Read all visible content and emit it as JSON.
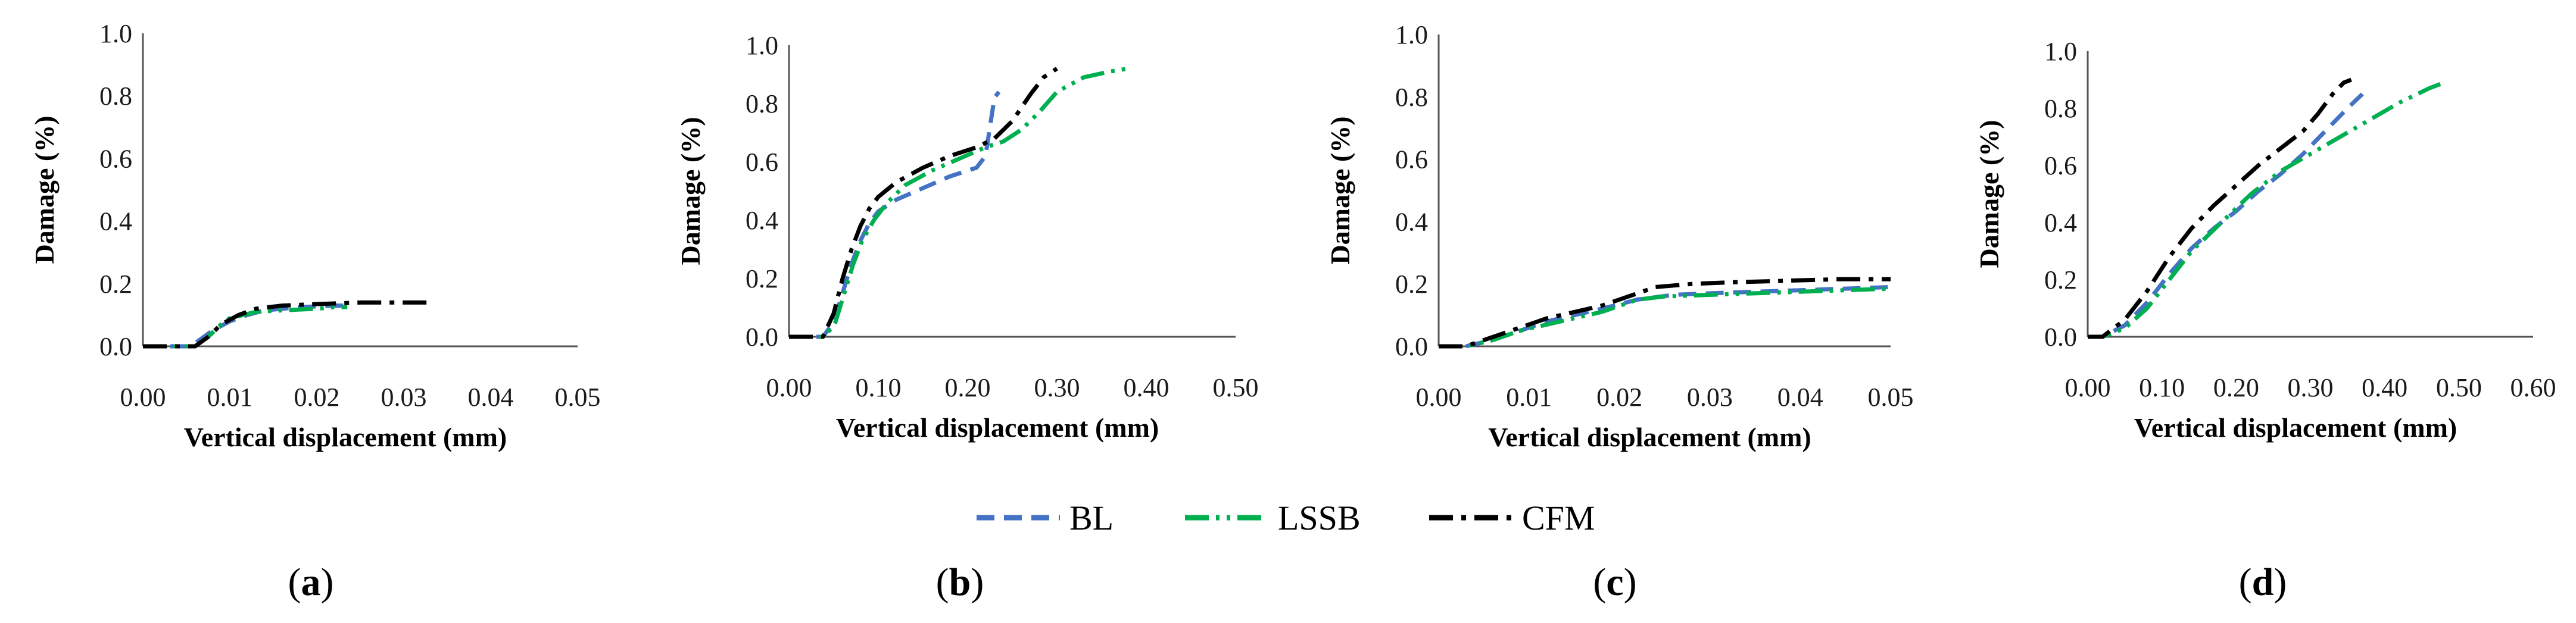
{
  "figure": {
    "legend": [
      {
        "name": "BL",
        "color": "#4472C4",
        "style": "dash"
      },
      {
        "name": "LSSB",
        "color": "#00B050",
        "style": "dashdotdot"
      },
      {
        "name": "CFM",
        "color": "#000000",
        "style": "dashdot"
      }
    ]
  },
  "chart_data": [
    {
      "type": "line",
      "panel": "a",
      "title": "",
      "xlabel": "Vertical displacement (mm)",
      "ylabel": "Damage (%)",
      "xlim": [
        0,
        0.05
      ],
      "ylim": [
        0,
        1.0
      ],
      "x_ticks": [
        "0.00",
        "0.01",
        "0.02",
        "0.03",
        "0.04",
        "0.05"
      ],
      "y_ticks": [
        "0.0",
        "0.2",
        "0.4",
        "0.6",
        "0.8",
        "1.0"
      ],
      "series": [
        {
          "name": "BL",
          "points": [
            [
              0,
              0
            ],
            [
              0.0055,
              0.0
            ],
            [
              0.0065,
              0.02
            ],
            [
              0.008,
              0.05
            ],
            [
              0.01,
              0.08
            ],
            [
              0.012,
              0.1
            ],
            [
              0.014,
              0.115
            ],
            [
              0.018,
              0.125
            ],
            [
              0.022,
              0.13
            ],
            [
              0.024,
              0.13
            ]
          ]
        },
        {
          "name": "LSSB",
          "points": [
            [
              0,
              0
            ],
            [
              0.006,
              0.0
            ],
            [
              0.0075,
              0.03
            ],
            [
              0.009,
              0.07
            ],
            [
              0.01,
              0.09
            ],
            [
              0.0115,
              0.1
            ],
            [
              0.013,
              0.11
            ],
            [
              0.016,
              0.115
            ],
            [
              0.02,
              0.12
            ],
            [
              0.022,
              0.125
            ],
            [
              0.0235,
              0.125
            ]
          ]
        },
        {
          "name": "CFM",
          "points": [
            [
              0,
              0
            ],
            [
              0.006,
              0.0
            ],
            [
              0.0075,
              0.03
            ],
            [
              0.009,
              0.07
            ],
            [
              0.011,
              0.1
            ],
            [
              0.013,
              0.12
            ],
            [
              0.016,
              0.13
            ],
            [
              0.02,
              0.135
            ],
            [
              0.025,
              0.14
            ],
            [
              0.03,
              0.14
            ],
            [
              0.033,
              0.14
            ]
          ]
        }
      ]
    },
    {
      "type": "line",
      "panel": "b",
      "title": "",
      "xlabel": "Vertical displacement (mm)",
      "ylabel": "Damage (%)",
      "xlim": [
        0,
        0.5
      ],
      "ylim": [
        0,
        1.0
      ],
      "x_ticks": [
        "0.00",
        "0.10",
        "0.20",
        "0.30",
        "0.40",
        "0.50"
      ],
      "y_ticks": [
        "0.0",
        "0.2",
        "0.4",
        "0.6",
        "0.8",
        "1.0"
      ],
      "series": [
        {
          "name": "BL",
          "points": [
            [
              0,
              0
            ],
            [
              0.038,
              0.0
            ],
            [
              0.05,
              0.05
            ],
            [
              0.06,
              0.15
            ],
            [
              0.07,
              0.25
            ],
            [
              0.08,
              0.33
            ],
            [
              0.09,
              0.39
            ],
            [
              0.1,
              0.43
            ],
            [
              0.12,
              0.47
            ],
            [
              0.15,
              0.51
            ],
            [
              0.18,
              0.55
            ],
            [
              0.2,
              0.57
            ],
            [
              0.21,
              0.58
            ],
            [
              0.22,
              0.62
            ],
            [
              0.225,
              0.72
            ],
            [
              0.23,
              0.82
            ],
            [
              0.235,
              0.84
            ]
          ]
        },
        {
          "name": "LSSB",
          "points": [
            [
              0,
              0
            ],
            [
              0.04,
              0.0
            ],
            [
              0.052,
              0.05
            ],
            [
              0.062,
              0.15
            ],
            [
              0.072,
              0.25
            ],
            [
              0.082,
              0.33
            ],
            [
              0.095,
              0.4
            ],
            [
              0.11,
              0.46
            ],
            [
              0.13,
              0.52
            ],
            [
              0.16,
              0.57
            ],
            [
              0.19,
              0.61
            ],
            [
              0.22,
              0.65
            ],
            [
              0.24,
              0.67
            ],
            [
              0.26,
              0.71
            ],
            [
              0.28,
              0.77
            ],
            [
              0.3,
              0.84
            ],
            [
              0.33,
              0.89
            ],
            [
              0.36,
              0.91
            ],
            [
              0.38,
              0.92
            ]
          ]
        },
        {
          "name": "CFM",
          "points": [
            [
              0,
              0
            ],
            [
              0.038,
              0.0
            ],
            [
              0.05,
              0.08
            ],
            [
              0.06,
              0.2
            ],
            [
              0.07,
              0.3
            ],
            [
              0.08,
              0.38
            ],
            [
              0.09,
              0.44
            ],
            [
              0.1,
              0.48
            ],
            [
              0.12,
              0.53
            ],
            [
              0.15,
              0.58
            ],
            [
              0.18,
              0.62
            ],
            [
              0.21,
              0.65
            ],
            [
              0.23,
              0.68
            ],
            [
              0.25,
              0.74
            ],
            [
              0.27,
              0.83
            ],
            [
              0.285,
              0.89
            ],
            [
              0.3,
              0.92
            ]
          ]
        }
      ]
    },
    {
      "type": "line",
      "panel": "c",
      "title": "",
      "xlabel": "Vertical displacement (mm)",
      "ylabel": "Damage (%)",
      "xlim": [
        0,
        0.05
      ],
      "ylim": [
        0,
        1.0
      ],
      "x_ticks": [
        "0.00",
        "0.01",
        "0.02",
        "0.03",
        "0.04",
        "0.05"
      ],
      "y_ticks": [
        "0.0",
        "0.2",
        "0.4",
        "0.6",
        "0.8",
        "1.0"
      ],
      "series": [
        {
          "name": "BL",
          "points": [
            [
              0,
              0
            ],
            [
              0.003,
              0.0
            ],
            [
              0.006,
              0.02
            ],
            [
              0.009,
              0.05
            ],
            [
              0.012,
              0.08
            ],
            [
              0.015,
              0.1
            ],
            [
              0.018,
              0.12
            ],
            [
              0.022,
              0.15
            ],
            [
              0.026,
              0.165
            ],
            [
              0.03,
              0.17
            ],
            [
              0.035,
              0.175
            ],
            [
              0.04,
              0.18
            ],
            [
              0.045,
              0.185
            ],
            [
              0.05,
              0.19
            ]
          ]
        },
        {
          "name": "LSSB",
          "points": [
            [
              0,
              0
            ],
            [
              0.003,
              0.0
            ],
            [
              0.006,
              0.02
            ],
            [
              0.009,
              0.05
            ],
            [
              0.012,
              0.07
            ],
            [
              0.015,
              0.09
            ],
            [
              0.018,
              0.11
            ],
            [
              0.022,
              0.15
            ],
            [
              0.025,
              0.16
            ],
            [
              0.03,
              0.165
            ],
            [
              0.035,
              0.17
            ],
            [
              0.04,
              0.175
            ],
            [
              0.045,
              0.18
            ],
            [
              0.05,
              0.185
            ]
          ]
        },
        {
          "name": "CFM",
          "points": [
            [
              0,
              0
            ],
            [
              0.003,
              0.0
            ],
            [
              0.006,
              0.03
            ],
            [
              0.009,
              0.06
            ],
            [
              0.012,
              0.09
            ],
            [
              0.015,
              0.11
            ],
            [
              0.018,
              0.13
            ],
            [
              0.021,
              0.16
            ],
            [
              0.024,
              0.19
            ],
            [
              0.028,
              0.2
            ],
            [
              0.032,
              0.205
            ],
            [
              0.038,
              0.21
            ],
            [
              0.044,
              0.215
            ],
            [
              0.05,
              0.215
            ]
          ]
        }
      ]
    },
    {
      "type": "line",
      "panel": "d",
      "title": "",
      "xlabel": "Vertical displacement (mm)",
      "ylabel": "Damage (%)",
      "xlim": [
        0,
        0.6
      ],
      "ylim": [
        0,
        1.0
      ],
      "x_ticks": [
        "0.00",
        "0.10",
        "0.20",
        "0.30",
        "0.40",
        "0.50",
        "0.60"
      ],
      "y_ticks": [
        "0.0",
        "0.2",
        "0.4",
        "0.6",
        "0.8",
        "1.0"
      ],
      "series": [
        {
          "name": "BL",
          "points": [
            [
              0,
              0
            ],
            [
              0.02,
              0.0
            ],
            [
              0.05,
              0.04
            ],
            [
              0.08,
              0.12
            ],
            [
              0.11,
              0.22
            ],
            [
              0.14,
              0.31
            ],
            [
              0.17,
              0.38
            ],
            [
              0.2,
              0.44
            ],
            [
              0.23,
              0.51
            ],
            [
              0.26,
              0.57
            ],
            [
              0.29,
              0.64
            ],
            [
              0.32,
              0.72
            ],
            [
              0.35,
              0.8
            ],
            [
              0.37,
              0.85
            ]
          ]
        },
        {
          "name": "LSSB",
          "points": [
            [
              0,
              0
            ],
            [
              0.02,
              0.0
            ],
            [
              0.05,
              0.03
            ],
            [
              0.08,
              0.1
            ],
            [
              0.11,
              0.2
            ],
            [
              0.14,
              0.3
            ],
            [
              0.18,
              0.4
            ],
            [
              0.22,
              0.5
            ],
            [
              0.26,
              0.58
            ],
            [
              0.3,
              0.64
            ],
            [
              0.34,
              0.7
            ],
            [
              0.38,
              0.76
            ],
            [
              0.42,
              0.82
            ],
            [
              0.46,
              0.87
            ],
            [
              0.48,
              0.89
            ]
          ]
        },
        {
          "name": "CFM",
          "points": [
            [
              0,
              0
            ],
            [
              0.02,
              0.0
            ],
            [
              0.05,
              0.06
            ],
            [
              0.08,
              0.16
            ],
            [
              0.11,
              0.28
            ],
            [
              0.14,
              0.38
            ],
            [
              0.17,
              0.46
            ],
            [
              0.2,
              0.53
            ],
            [
              0.23,
              0.6
            ],
            [
              0.26,
              0.66
            ],
            [
              0.29,
              0.72
            ],
            [
              0.31,
              0.78
            ],
            [
              0.33,
              0.85
            ],
            [
              0.345,
              0.89
            ],
            [
              0.355,
              0.9
            ]
          ]
        }
      ]
    }
  ],
  "panel_labels": [
    {
      "open": "(",
      "letter": "a",
      "close": ")"
    },
    {
      "open": "(",
      "letter": "b",
      "close": ")"
    },
    {
      "open": "(",
      "letter": "c",
      "close": ")"
    },
    {
      "open": "(",
      "letter": "d",
      "close": ")"
    }
  ]
}
